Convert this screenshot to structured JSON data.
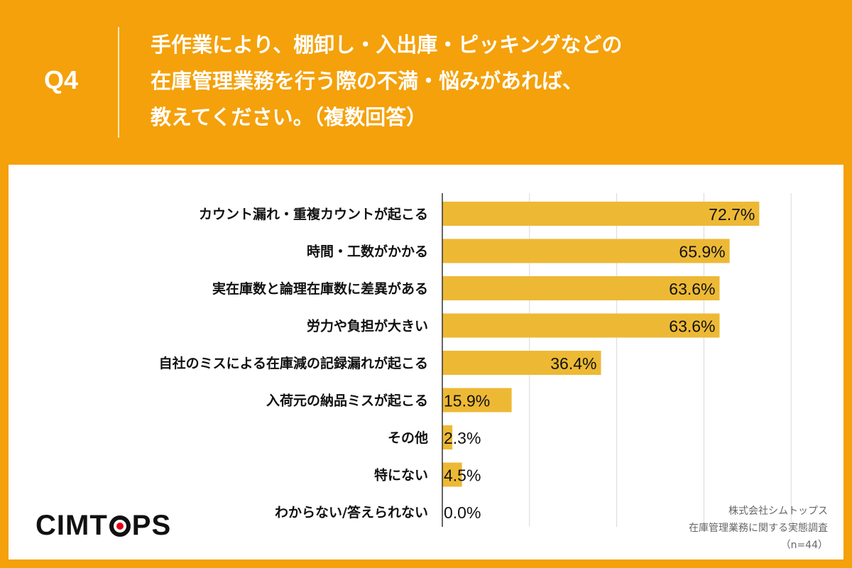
{
  "header": {
    "q_label": "Q4",
    "question_lines": [
      "手作業により、棚卸し・入出庫・ピッキングなどの",
      "在庫管理業務を行う際の不満・悩みがあれば、",
      "教えてください。（複数回答）"
    ]
  },
  "chart_data": {
    "type": "bar",
    "orientation": "horizontal",
    "categories": [
      "カウント漏れ・重複カウントが起こる",
      "時間・工数がかかる",
      "実在庫数と論理在庫数に差異がある",
      "労力や負担が大きい",
      "自社のミスによる在庫減の記録漏れが起こる",
      "入荷元の納品ミスが起こる",
      "その他",
      "特にない",
      "わからない/答えられない"
    ],
    "values": [
      72.7,
      65.9,
      63.6,
      63.6,
      36.4,
      15.9,
      2.3,
      4.5,
      0.0
    ],
    "data_labels": [
      "72.7%",
      "65.9%",
      "63.6%",
      "63.6%",
      "36.4%",
      "15.9%",
      "2.3%",
      "4.5%",
      "0.0%"
    ],
    "xlim": [
      0,
      80
    ],
    "grid": true,
    "bar_color": "#EDB935"
  },
  "brand": {
    "logo_left": "CIMT",
    "logo_right": "PS"
  },
  "source": {
    "lines": [
      "株式会社シムトップス",
      "在庫管理業務に関する実態調査",
      "（n=44）"
    ]
  }
}
